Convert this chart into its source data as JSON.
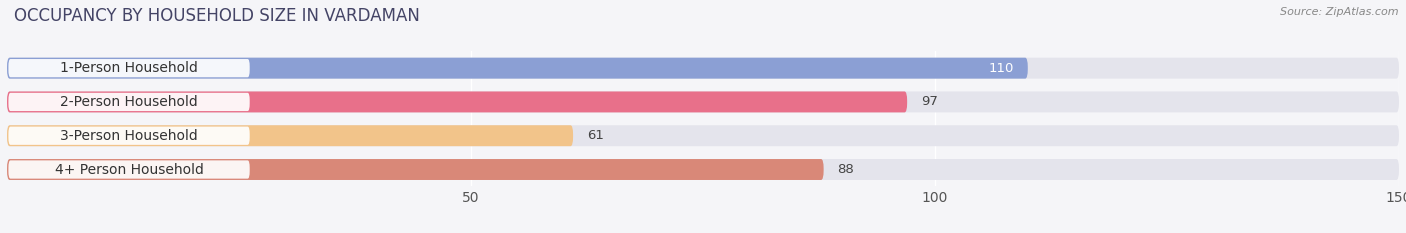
{
  "title": "OCCUPANCY BY HOUSEHOLD SIZE IN VARDAMAN",
  "source": "Source: ZipAtlas.com",
  "categories": [
    "1-Person Household",
    "2-Person Household",
    "3-Person Household",
    "4+ Person Household"
  ],
  "values": [
    110,
    97,
    61,
    88
  ],
  "bar_colors": [
    "#8b9fd4",
    "#e8708a",
    "#f2c48a",
    "#d98878"
  ],
  "xlim": [
    0,
    150
  ],
  "xticks": [
    50,
    100,
    150
  ],
  "background_color": "#f5f5f8",
  "bar_bg_color": "#e4e4ec",
  "label_bg_color": "#ffffff",
  "title_fontsize": 12,
  "label_fontsize": 10,
  "value_fontsize": 9.5,
  "tick_fontsize": 10
}
